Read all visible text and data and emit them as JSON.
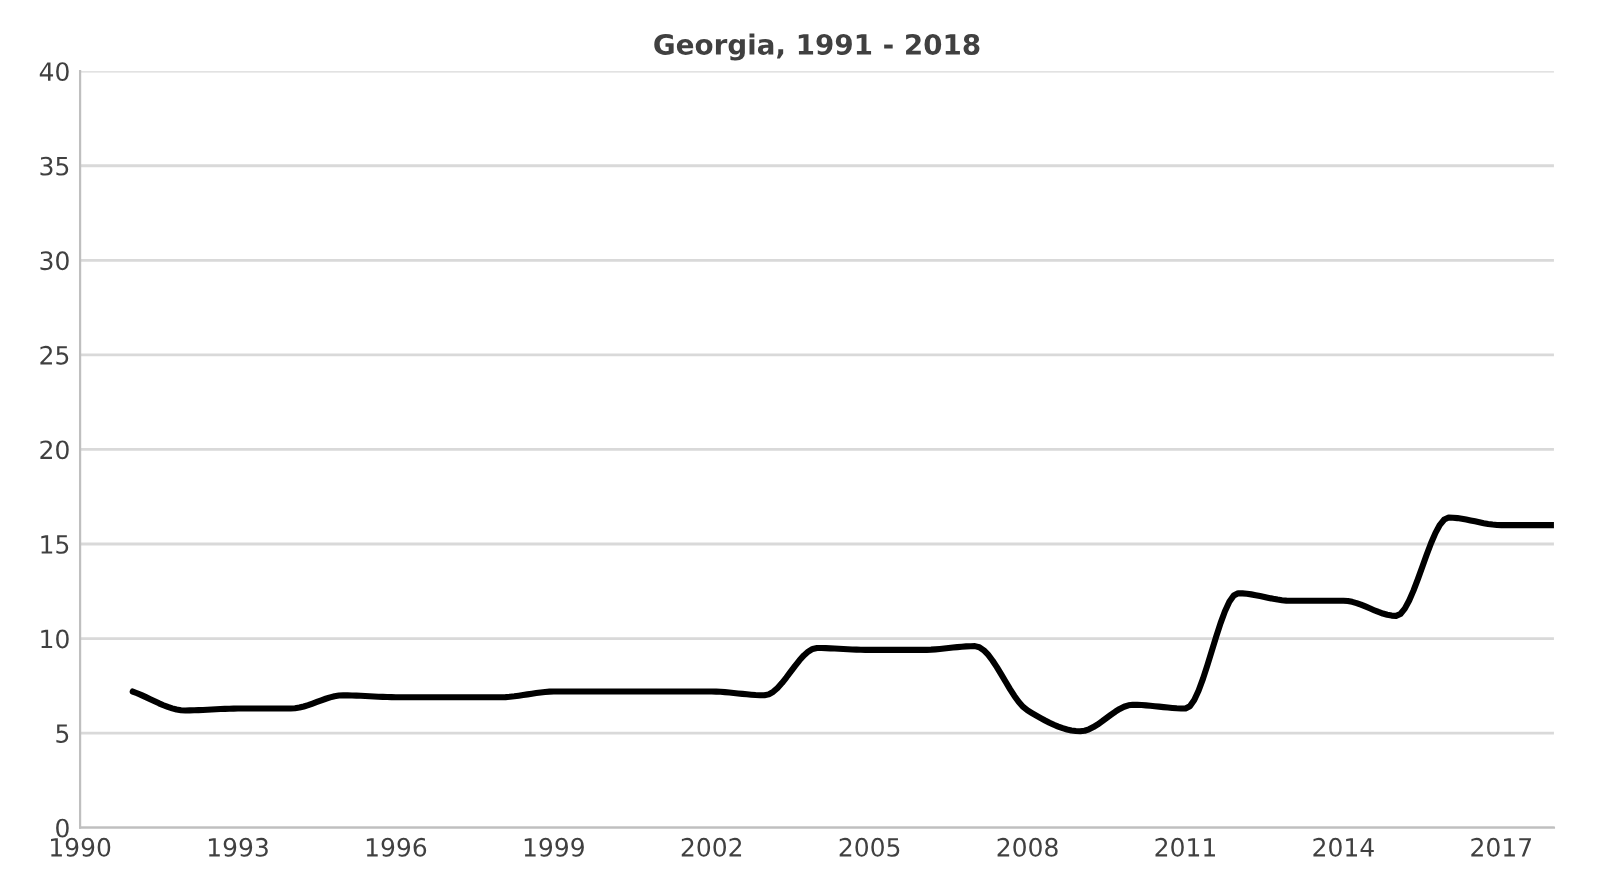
{
  "chart_data": {
    "type": "line",
    "title": "Georgia, 1991 - 2018",
    "x": [
      1991,
      1992,
      1993,
      1994,
      1995,
      1996,
      1997,
      1998,
      1999,
      2000,
      2001,
      2002,
      2003,
      2004,
      2005,
      2006,
      2007,
      2008,
      2009,
      2010,
      2011,
      2012,
      2013,
      2014,
      2015,
      2016,
      2017,
      2018
    ],
    "series": [
      {
        "color": "#000000",
        "values": [
          7.2,
          6.2,
          6.3,
          6.3,
          7.0,
          6.9,
          6.9,
          6.9,
          7.2,
          7.2,
          7.2,
          7.2,
          7.0,
          9.5,
          9.4,
          9.4,
          9.6,
          6.2,
          5.1,
          6.5,
          6.3,
          12.4,
          12.0,
          12.0,
          11.2,
          16.4,
          16.0,
          16.0
        ]
      }
    ],
    "xlim": [
      1990,
      2018
    ],
    "xticks": [
      1990,
      1993,
      1996,
      1999,
      2002,
      2005,
      2008,
      2011,
      2014,
      2017
    ],
    "ylim": [
      0,
      40
    ],
    "yticks": [
      0,
      5,
      10,
      15,
      20,
      25,
      30,
      35,
      40
    ],
    "grid": "y",
    "marker": "none",
    "line_style": "solid"
  }
}
